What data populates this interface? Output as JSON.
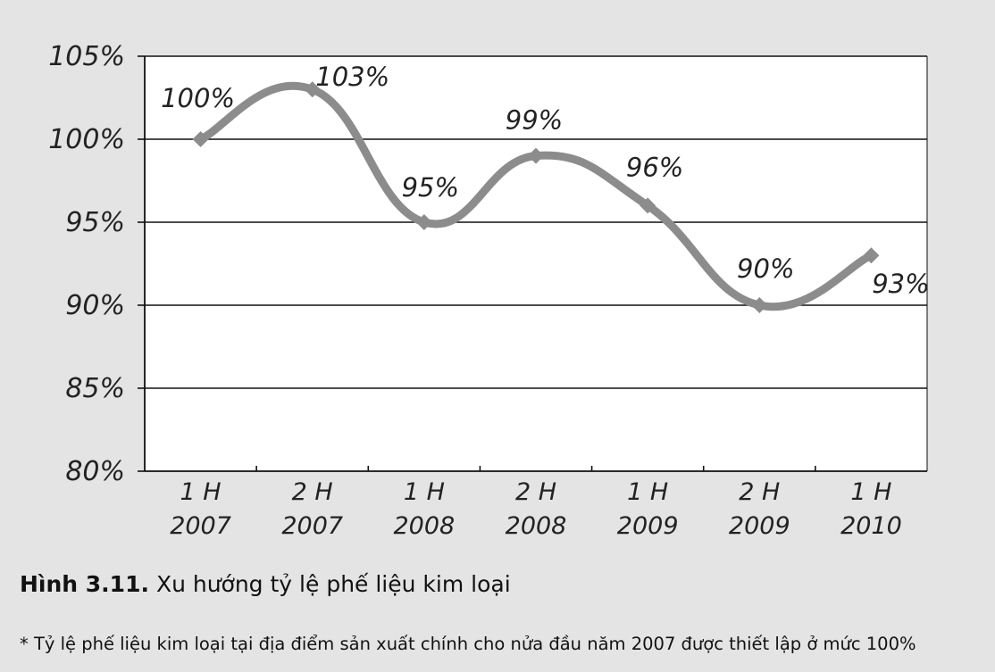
{
  "chart_data": {
    "type": "line",
    "categories": [
      "1 H\n2007",
      "2 H\n2007",
      "1 H\n2008",
      "2 H\n2008",
      "1 H\n2009",
      "2 H\n2009",
      "1 H\n2010"
    ],
    "x_tick_lines": [
      [
        "1 H",
        "2007"
      ],
      [
        "2 H",
        "2007"
      ],
      [
        "1 H",
        "2008"
      ],
      [
        "2 H",
        "2008"
      ],
      [
        "1 H",
        "2009"
      ],
      [
        "2 H",
        "2009"
      ],
      [
        "1 H",
        "2010"
      ]
    ],
    "series": [
      {
        "values": [
          100,
          103,
          95,
          99,
          96,
          90,
          93
        ]
      }
    ],
    "data_labels": [
      "100%",
      "103%",
      "95%",
      "99%",
      "96%",
      "90%",
      "93%"
    ],
    "y_ticks": [
      80,
      85,
      90,
      95,
      100,
      105
    ],
    "y_tick_labels": [
      "80%",
      "85%",
      "90%",
      "95%",
      "100%",
      "105%"
    ],
    "ylim": [
      80,
      105
    ],
    "grid": true,
    "line_color": "#8c8c8c",
    "plot_background": "#ffffff"
  },
  "caption": {
    "figure_number": "Hình 3.11.",
    "title": "Xu hướng tỷ lệ phế liệu kim loại"
  },
  "footnote": "* Tỷ lệ phế liệu kim loại tại địa điểm sản xuất chính cho nửa đầu năm 2007 được thiết lập ở mức 100%"
}
